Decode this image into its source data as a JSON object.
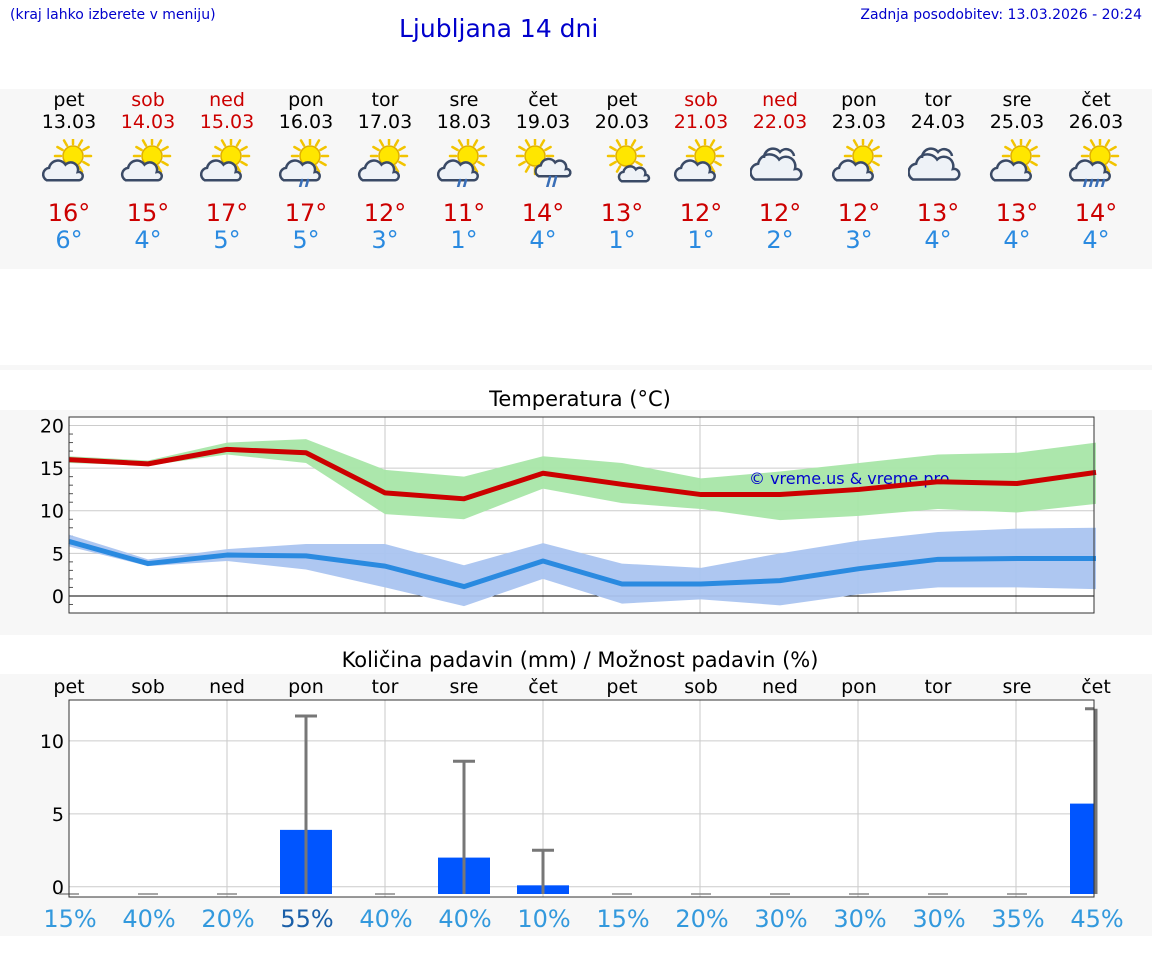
{
  "header": {
    "note": "(kraj lahko izberete v meniju)",
    "title": "Ljubljana 14 dni",
    "updated": "Zadnja posodobitev: 13.03.2026 - 20:24"
  },
  "colors": {
    "link": "#0000cc",
    "max": "#cc0000",
    "min": "#2a8ae0",
    "max_band": "#a8e6a8",
    "min_band": "#aac4f0",
    "bar": "#0055ff"
  },
  "days": [
    {
      "name": "pet",
      "date": "13.03",
      "weekend": false,
      "icon": "partly-cloudy-icon",
      "max": "16°",
      "min": "6°"
    },
    {
      "name": "sob",
      "date": "14.03",
      "weekend": true,
      "icon": "partly-cloudy-icon",
      "max": "15°",
      "min": "4°"
    },
    {
      "name": "ned",
      "date": "15.03",
      "weekend": true,
      "icon": "partly-cloudy-icon",
      "max": "17°",
      "min": "5°"
    },
    {
      "name": "pon",
      "date": "16.03",
      "weekend": false,
      "icon": "partly-cloudy-rain-icon",
      "max": "17°",
      "min": "5°"
    },
    {
      "name": "tor",
      "date": "17.03",
      "weekend": false,
      "icon": "partly-cloudy-icon",
      "max": "12°",
      "min": "3°"
    },
    {
      "name": "sre",
      "date": "18.03",
      "weekend": false,
      "icon": "partly-cloudy-rain-icon",
      "max": "11°",
      "min": "1°"
    },
    {
      "name": "čet",
      "date": "19.03",
      "weekend": false,
      "icon": "sun-cloud-rain-icon",
      "max": "14°",
      "min": "4°"
    },
    {
      "name": "pet",
      "date": "20.03",
      "weekend": false,
      "icon": "mostly-sunny-icon",
      "max": "13°",
      "min": "1°"
    },
    {
      "name": "sob",
      "date": "21.03",
      "weekend": true,
      "icon": "partly-cloudy-icon",
      "max": "12°",
      "min": "1°"
    },
    {
      "name": "ned",
      "date": "22.03",
      "weekend": true,
      "icon": "cloudy-icon",
      "max": "12°",
      "min": "2°"
    },
    {
      "name": "pon",
      "date": "23.03",
      "weekend": false,
      "icon": "partly-cloudy-icon",
      "max": "12°",
      "min": "3°"
    },
    {
      "name": "tor",
      "date": "24.03",
      "weekend": false,
      "icon": "cloudy-icon",
      "max": "13°",
      "min": "4°"
    },
    {
      "name": "sre",
      "date": "25.03",
      "weekend": false,
      "icon": "partly-cloudy-icon",
      "max": "13°",
      "min": "4°"
    },
    {
      "name": "čet",
      "date": "26.03",
      "weekend": false,
      "icon": "partly-cloudy-heavy-rain-icon",
      "max": "14°",
      "min": "4°"
    }
  ],
  "chart_data": [
    {
      "type": "line",
      "title": "Temperatura (°C)",
      "watermark": "© vreme.us & vreme.pro",
      "ylim": [
        -2,
        21
      ],
      "yticks": [
        0,
        5,
        10,
        15,
        20
      ],
      "grid": true,
      "series": [
        {
          "name": "max",
          "values": [
            16,
            15.5,
            17.2,
            16.8,
            12.1,
            11.4,
            14.4,
            13.1,
            11.9,
            11.9,
            12.5,
            13.4,
            13.2,
            14.5
          ],
          "band_low": [
            15.6,
            15.3,
            16.6,
            15.6,
            9.6,
            9.0,
            12.6,
            10.9,
            10.2,
            8.9,
            9.4,
            10.2,
            9.8,
            10.8
          ],
          "band_high": [
            16.4,
            15.9,
            18.0,
            18.4,
            14.8,
            14.0,
            16.4,
            15.6,
            13.8,
            14.6,
            15.6,
            16.6,
            16.8,
            18.0
          ]
        },
        {
          "name": "min",
          "values": [
            6.4,
            3.8,
            4.8,
            4.7,
            3.5,
            1.1,
            4.1,
            1.4,
            1.4,
            1.8,
            3.2,
            4.3,
            4.4,
            4.4
          ],
          "band_low": [
            5.8,
            3.5,
            4.1,
            3.1,
            1.0,
            -1.2,
            2.0,
            -0.9,
            -0.4,
            -1.1,
            0.2,
            1.0,
            1.0,
            0.8
          ],
          "band_high": [
            7.2,
            4.3,
            5.5,
            6.1,
            6.1,
            3.6,
            6.2,
            3.8,
            3.3,
            5.0,
            6.5,
            7.5,
            7.9,
            8.0
          ]
        }
      ]
    },
    {
      "type": "bar",
      "title": "Količina padavin (mm) / Možnost padavin (%)",
      "categories": [
        "pet",
        "sob",
        "ned",
        "pon",
        "tor",
        "sre",
        "čet",
        "pet",
        "sob",
        "ned",
        "pon",
        "tor",
        "sre",
        "čet"
      ],
      "ylim": [
        -0.7,
        12.8
      ],
      "yticks": [
        0,
        5,
        10
      ],
      "values": [
        0,
        0,
        0,
        3.9,
        0,
        2.0,
        0.1,
        0,
        0,
        0,
        0,
        0,
        0,
        5.7
      ],
      "error_high": [
        0,
        0,
        0,
        11.7,
        0,
        8.6,
        2.5,
        0,
        0,
        0,
        0,
        0,
        0,
        12.2
      ],
      "probability": [
        "15%",
        "40%",
        "20%",
        "55%",
        "40%",
        "40%",
        "10%",
        "15%",
        "20%",
        "30%",
        "30%",
        "30%",
        "35%",
        "45%"
      ],
      "probability_emphasis": [
        false,
        false,
        false,
        true,
        false,
        false,
        false,
        false,
        false,
        false,
        false,
        false,
        false,
        false
      ]
    }
  ]
}
